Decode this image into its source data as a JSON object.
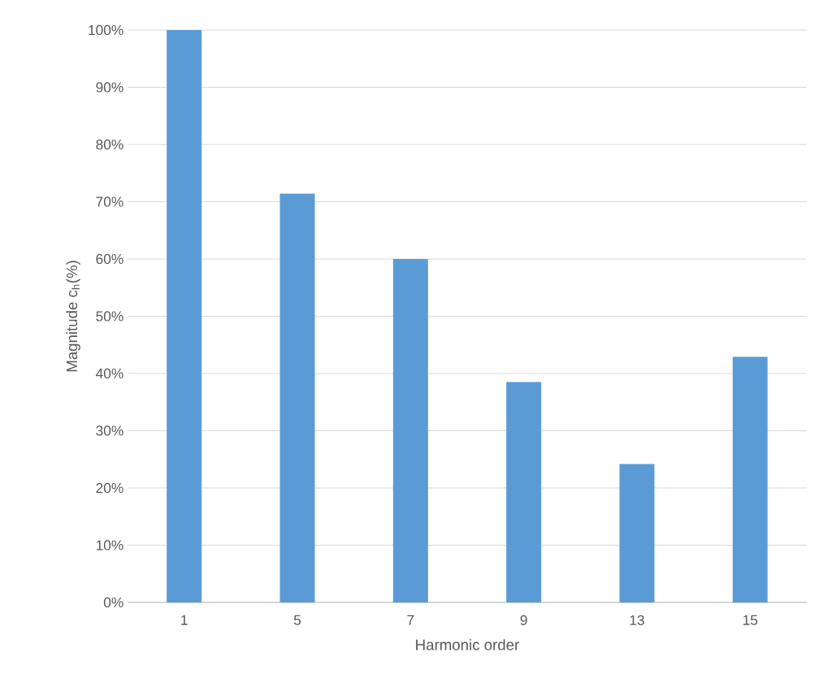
{
  "chart_data": {
    "type": "bar",
    "xlabel": "Harmonic order",
    "ylabel": "Magnitude c$_{h}$(%)",
    "categories": [
      "1",
      "5",
      "7",
      "9",
      "13",
      "15"
    ],
    "values": [
      100,
      71.4,
      60,
      38.5,
      24.2,
      42.9
    ],
    "color": "#5b9bd5",
    "ylim": [
      0,
      100
    ],
    "yticks": [
      {
        "value": 0,
        "label": "0%"
      },
      {
        "value": 10,
        "label": "10%"
      },
      {
        "value": 20,
        "label": "20%"
      },
      {
        "value": 30,
        "label": "30%"
      },
      {
        "value": 40,
        "label": "40%"
      },
      {
        "value": 50,
        "label": "50%"
      },
      {
        "value": 60,
        "label": "60%"
      },
      {
        "value": 70,
        "label": "70%"
      },
      {
        "value": 80,
        "label": "80%"
      },
      {
        "value": 90,
        "label": "90%"
      },
      {
        "value": 100,
        "label": "100%"
      }
    ],
    "grid": "y"
  }
}
